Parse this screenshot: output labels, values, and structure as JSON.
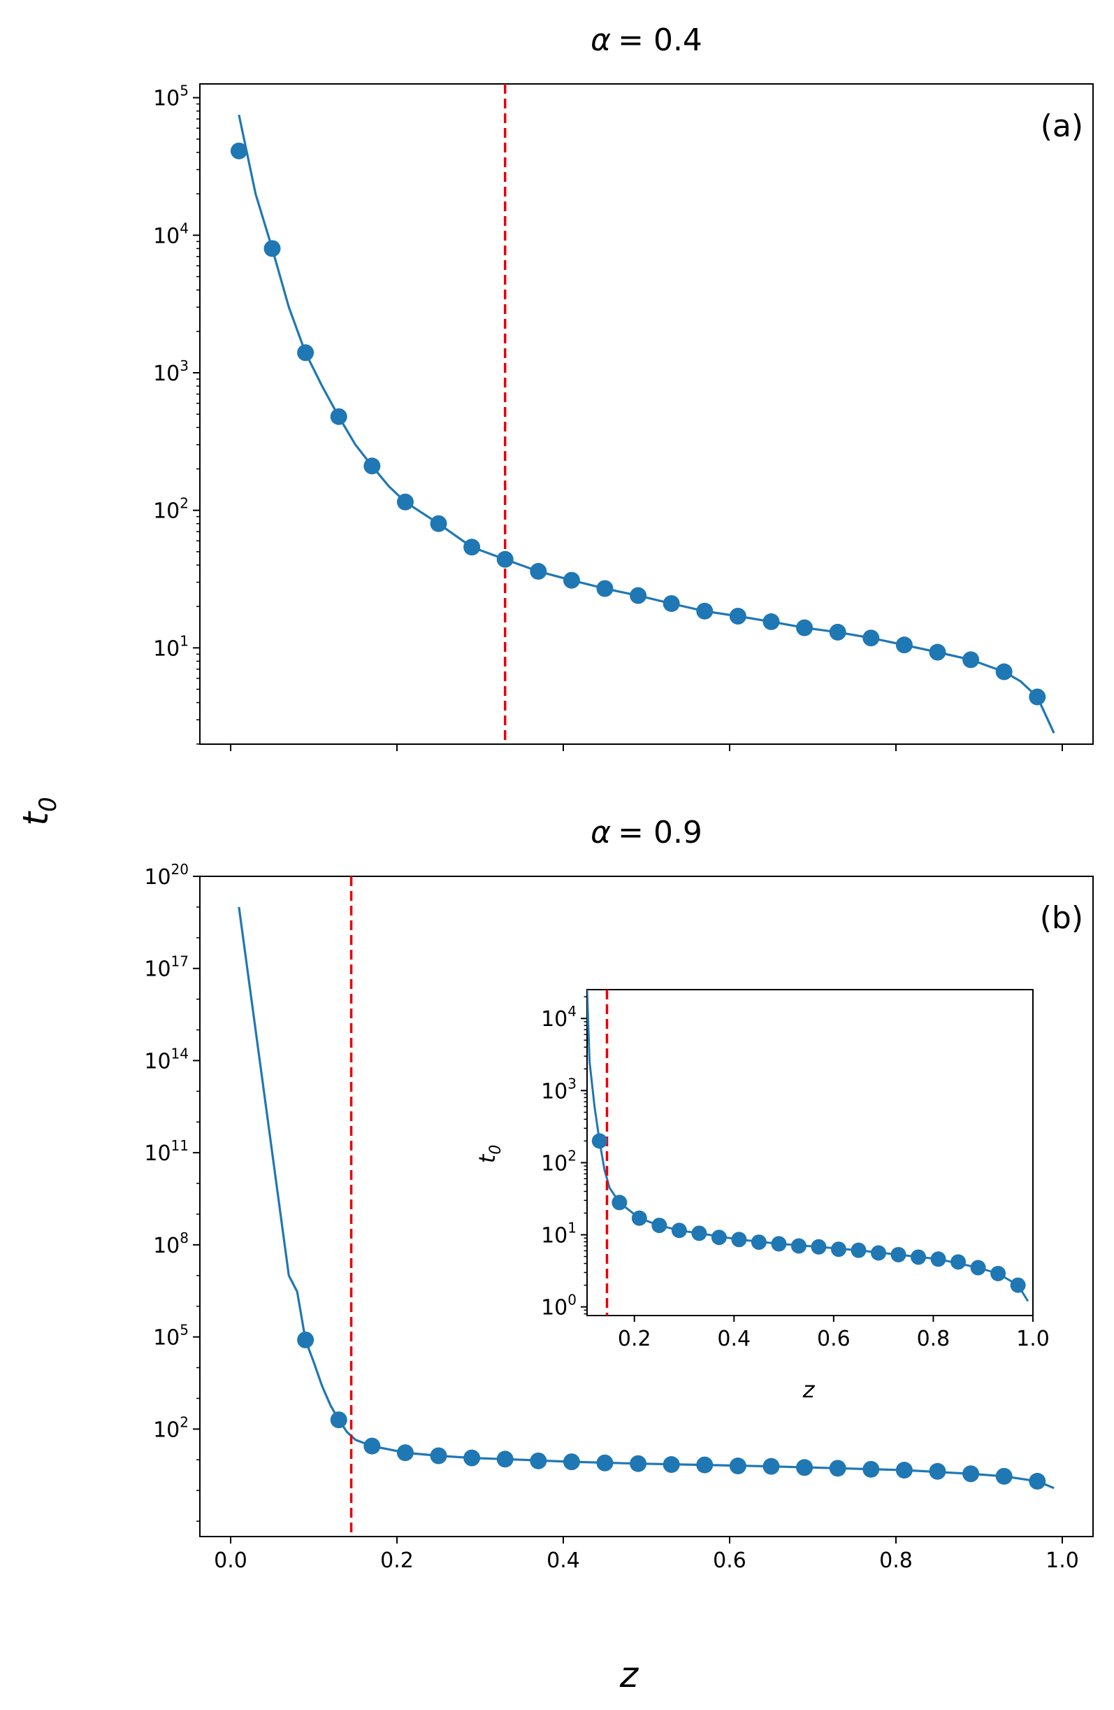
{
  "figure": {
    "ylabel": "t",
    "ylabel_sub": "0",
    "xlabel": "z"
  },
  "chart_data": [
    {
      "id": "a",
      "type": "line+scatter",
      "title": "α = 0.4",
      "title_symbol": "α",
      "title_value": "= 0.4",
      "panel_label": "(a)",
      "xlabel": "z",
      "ylabel": "t0",
      "yscale": "log",
      "xlim": [
        -0.037,
        1.037
      ],
      "ylim_log10": [
        0.3,
        5.1
      ],
      "xticks": [
        0.0,
        0.2,
        0.4,
        0.6,
        0.8,
        1.0
      ],
      "xtick_labels_visible": false,
      "yticks": [
        {
          "base": "10",
          "exp": "1",
          "log": 1
        },
        {
          "base": "10",
          "exp": "2",
          "log": 2
        },
        {
          "base": "10",
          "exp": "3",
          "log": 3
        },
        {
          "base": "10",
          "exp": "4",
          "log": 4
        },
        {
          "base": "10",
          "exp": "5",
          "log": 5
        }
      ],
      "critical_z": 0.33,
      "critical_color": "#e8000b",
      "series_color": "#1f77b4",
      "points_z": [
        0.01,
        0.05,
        0.09,
        0.13,
        0.17,
        0.21,
        0.25,
        0.29,
        0.33,
        0.37,
        0.41,
        0.45,
        0.49,
        0.53,
        0.57,
        0.61,
        0.65,
        0.69,
        0.73,
        0.77,
        0.81,
        0.85,
        0.89,
        0.93,
        0.97
      ],
      "points_t0": [
        41000,
        8000,
        1400,
        480,
        210,
        115,
        80,
        54,
        44,
        36,
        31,
        27,
        24,
        21,
        18.5,
        17,
        15.5,
        14,
        13,
        11.8,
        10.5,
        9.3,
        8.2,
        6.7,
        4.4
      ],
      "curve_z": [
        0.01,
        0.03,
        0.05,
        0.07,
        0.09,
        0.11,
        0.13,
        0.15,
        0.17,
        0.19,
        0.21,
        0.25,
        0.29,
        0.33,
        0.37,
        0.41,
        0.45,
        0.49,
        0.53,
        0.57,
        0.61,
        0.65,
        0.69,
        0.73,
        0.77,
        0.81,
        0.85,
        0.89,
        0.93,
        0.95,
        0.97,
        0.99
      ],
      "curve_t0": [
        75000,
        20000,
        8000,
        3000,
        1400,
        800,
        480,
        300,
        210,
        150,
        115,
        80,
        54,
        44,
        36,
        31,
        27,
        24,
        21,
        18.5,
        17,
        15.5,
        14,
        13,
        11.8,
        10.5,
        9.3,
        8.2,
        6.7,
        5.7,
        4.4,
        2.4
      ]
    },
    {
      "id": "b",
      "type": "line+scatter",
      "title": "α = 0.9",
      "title_symbol": "α",
      "title_value": "= 0.9",
      "panel_label": "(b)",
      "xlabel": "z",
      "ylabel": "t0",
      "yscale": "log",
      "xlim": [
        -0.037,
        1.037
      ],
      "ylim_log10": [
        -1.5,
        20
      ],
      "xticks": [
        0.0,
        0.2,
        0.4,
        0.6,
        0.8,
        1.0
      ],
      "xtick_labels": [
        "0.0",
        "0.2",
        "0.4",
        "0.6",
        "0.8",
        "1.0"
      ],
      "yticks": [
        {
          "base": "10",
          "exp": "2",
          "log": 2
        },
        {
          "base": "10",
          "exp": "5",
          "log": 5
        },
        {
          "base": "10",
          "exp": "8",
          "log": 8
        },
        {
          "base": "10",
          "exp": "11",
          "log": 11
        },
        {
          "base": "10",
          "exp": "14",
          "log": 14
        },
        {
          "base": "10",
          "exp": "17",
          "log": 17
        },
        {
          "base": "10",
          "exp": "20",
          "log": 20
        }
      ],
      "critical_z": 0.145,
      "critical_color": "#e8000b",
      "series_color": "#1f77b4",
      "points_z": [
        0.09,
        0.13,
        0.17,
        0.21,
        0.25,
        0.29,
        0.33,
        0.37,
        0.41,
        0.45,
        0.49,
        0.53,
        0.57,
        0.61,
        0.65,
        0.69,
        0.73,
        0.77,
        0.81,
        0.85,
        0.89,
        0.93,
        0.97
      ],
      "points_t0": [
        80000,
        200,
        28,
        17,
        13.5,
        11.5,
        10.5,
        9.2,
        8.6,
        7.9,
        7.5,
        7.0,
        6.8,
        6.3,
        6.1,
        5.6,
        5.3,
        4.9,
        4.6,
        4.2,
        3.5,
        2.9,
        2.0
      ],
      "curve_z": [
        0.01,
        0.02,
        0.03,
        0.04,
        0.05,
        0.06,
        0.07,
        0.08,
        0.09,
        0.1,
        0.11,
        0.12,
        0.13,
        0.14,
        0.15,
        0.17,
        0.21,
        0.25,
        0.29,
        0.33,
        0.41,
        0.49,
        0.57,
        0.65,
        0.73,
        0.81,
        0.89,
        0.93,
        0.97,
        0.99
      ],
      "curve_t0": [
        1e+19,
        1e+17,
        1000000000000000.0,
        10000000000000.0,
        100000000000.0,
        1000000000.0,
        10000000.0,
        3000000.0,
        80000,
        15000,
        2500,
        600,
        200,
        80,
        45,
        28,
        17,
        13.5,
        11.5,
        10.5,
        8.6,
        7.5,
        6.8,
        6.1,
        5.3,
        4.6,
        3.5,
        2.9,
        2.0,
        1.2
      ]
    },
    {
      "id": "b-inset",
      "type": "line+scatter",
      "xlabel": "z",
      "ylabel": "t",
      "ylabel_sub": "0",
      "yscale": "log",
      "xlim": [
        0.105,
        1.0
      ],
      "ylim_log10": [
        -0.12,
        4.4
      ],
      "xticks": [
        0.2,
        0.4,
        0.6,
        0.8,
        1.0
      ],
      "xtick_labels": [
        "0.2",
        "0.4",
        "0.6",
        "0.8",
        "1.0"
      ],
      "yticks": [
        {
          "base": "10",
          "exp": "0",
          "log": 0
        },
        {
          "base": "10",
          "exp": "1",
          "log": 1
        },
        {
          "base": "10",
          "exp": "2",
          "log": 2
        },
        {
          "base": "10",
          "exp": "3",
          "log": 3
        },
        {
          "base": "10",
          "exp": "4",
          "log": 4
        }
      ],
      "critical_z": 0.145,
      "critical_color": "#e8000b",
      "series_color": "#1f77b4",
      "points_z": [
        0.13,
        0.17,
        0.21,
        0.25,
        0.29,
        0.33,
        0.37,
        0.41,
        0.45,
        0.49,
        0.53,
        0.57,
        0.61,
        0.65,
        0.69,
        0.73,
        0.77,
        0.81,
        0.85,
        0.89,
        0.93,
        0.97
      ],
      "points_t0": [
        200,
        28,
        17,
        13.5,
        11.5,
        10.5,
        9.2,
        8.6,
        7.9,
        7.5,
        7.0,
        6.8,
        6.3,
        6.1,
        5.6,
        5.3,
        4.9,
        4.6,
        4.2,
        3.5,
        2.9,
        2.0
      ],
      "curve_z": [
        0.105,
        0.11,
        0.12,
        0.13,
        0.14,
        0.15,
        0.17,
        0.21,
        0.25,
        0.29,
        0.33,
        0.41,
        0.49,
        0.57,
        0.65,
        0.73,
        0.81,
        0.89,
        0.93,
        0.97,
        0.99
      ],
      "curve_t0": [
        25000,
        2500,
        600,
        200,
        80,
        45,
        28,
        17,
        13.5,
        11.5,
        10.5,
        8.6,
        7.5,
        6.8,
        6.1,
        5.3,
        4.6,
        3.5,
        2.9,
        2.0,
        1.2
      ]
    }
  ]
}
